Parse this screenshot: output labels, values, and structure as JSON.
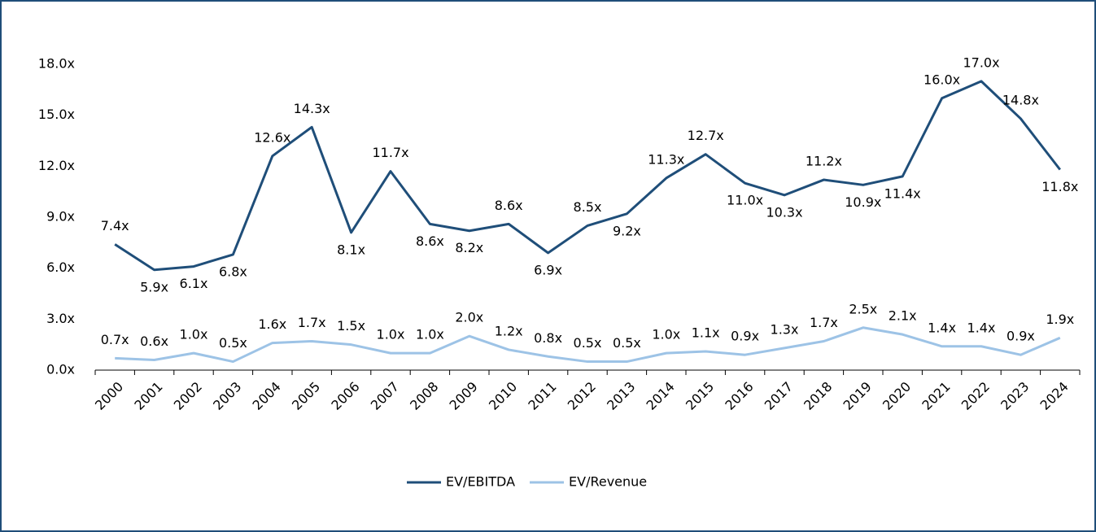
{
  "chart_data": {
    "type": "line",
    "categories": [
      "2000",
      "2001",
      "2002",
      "2003",
      "2004",
      "2005",
      "2006",
      "2007",
      "2008",
      "2009",
      "2010",
      "2011",
      "2012",
      "2013",
      "2014",
      "2015",
      "2016",
      "2017",
      "2018",
      "2019",
      "2020",
      "2021",
      "2022",
      "2023",
      "2024"
    ],
    "series": [
      {
        "name": "EV/EBITDA",
        "color": "#1f4e79",
        "values": [
          7.4,
          5.9,
          6.1,
          6.8,
          12.6,
          14.3,
          8.1,
          11.7,
          8.6,
          8.2,
          8.6,
          6.9,
          8.5,
          9.2,
          11.3,
          12.7,
          11.0,
          10.3,
          11.2,
          10.9,
          11.4,
          16.0,
          17.0,
          14.8,
          11.8
        ],
        "value_labels": [
          "7.4x",
          "5.9x",
          "6.1x",
          "6.8x",
          "12.6x",
          "14.3x",
          "8.1x",
          "11.7x",
          "8.6x",
          "8.2x",
          "8.6x",
          "6.9x",
          "8.5x",
          "9.2x",
          "11.3x",
          "12.7x",
          "11.0x",
          "10.3x",
          "11.2x",
          "10.9x",
          "11.4x",
          "16.0x",
          "17.0x",
          "14.8x",
          "11.8x"
        ]
      },
      {
        "name": "EV/Revenue",
        "color": "#9dc3e6",
        "values": [
          0.7,
          0.6,
          1.0,
          0.5,
          1.6,
          1.7,
          1.5,
          1.0,
          1.0,
          2.0,
          1.2,
          0.8,
          0.5,
          0.5,
          1.0,
          1.1,
          0.9,
          1.3,
          1.7,
          2.5,
          2.1,
          1.4,
          1.4,
          0.9,
          1.9
        ],
        "value_labels": [
          "0.7x",
          "0.6x",
          "1.0x",
          "0.5x",
          "1.6x",
          "1.7x",
          "1.5x",
          "1.0x",
          "1.0x",
          "2.0x",
          "1.2x",
          "0.8x",
          "0.5x",
          "0.5x",
          "1.0x",
          "1.1x",
          "0.9x",
          "1.3x",
          "1.7x",
          "2.5x",
          "2.1x",
          "1.4x",
          "1.4x",
          "0.9x",
          "1.9x"
        ]
      }
    ],
    "ylim": [
      0,
      18
    ],
    "yticks": [
      {
        "value": 0,
        "label": "0.0x"
      },
      {
        "value": 3,
        "label": "3.0x"
      },
      {
        "value": 6,
        "label": "6.0x"
      },
      {
        "value": 9,
        "label": "9.0x"
      },
      {
        "value": 12,
        "label": "12.0x"
      },
      {
        "value": 15,
        "label": "15.0x"
      },
      {
        "value": 18,
        "label": "18.0x"
      }
    ],
    "legend": "bottom"
  }
}
